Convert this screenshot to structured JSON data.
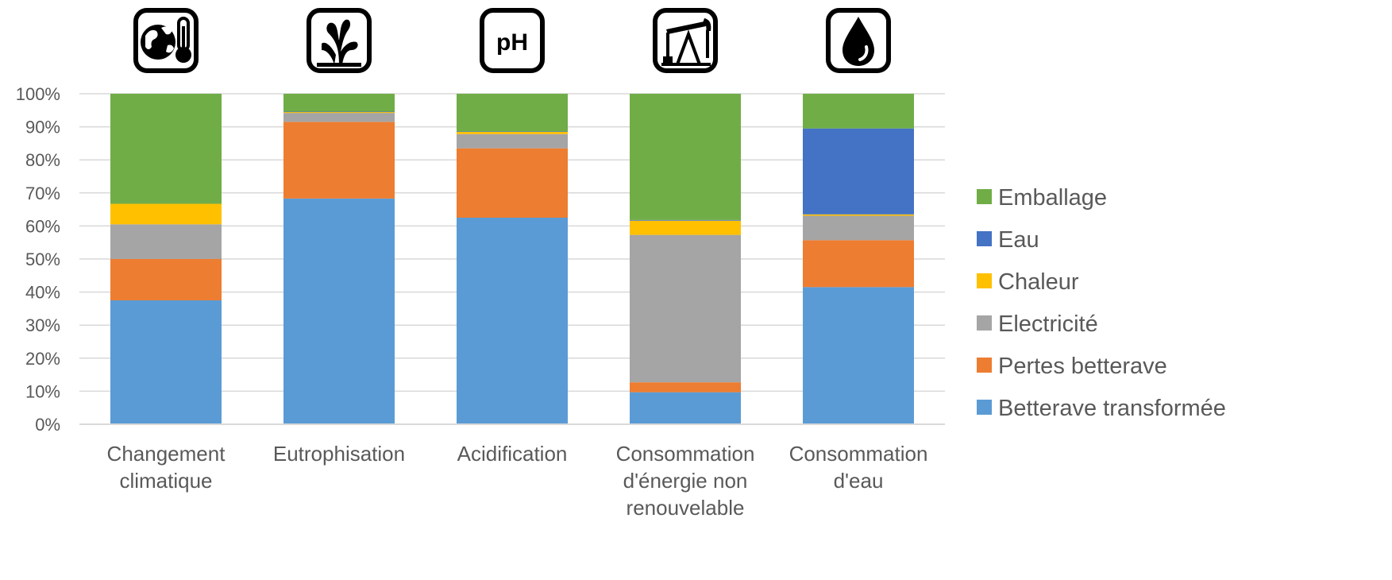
{
  "chart_data": {
    "type": "bar",
    "stacked": true,
    "percent": true,
    "categories": [
      [
        "Changement",
        "climatique"
      ],
      [
        "Eutrophisation"
      ],
      [
        "Acidification"
      ],
      [
        "Consommation",
        "d'énergie non",
        "renouvelable"
      ],
      [
        "Consommation",
        "d'eau"
      ]
    ],
    "category_icons": [
      "globe-thermometer-icon",
      "algae-icon",
      "ph-icon",
      "oil-pump-icon",
      "water-drop-icon"
    ],
    "ph_icon_text": "pH",
    "series": [
      {
        "name": "Betterave transformée",
        "color": "#5B9BD5",
        "values": [
          37.5,
          68.3,
          62.5,
          9.7,
          41.5
        ]
      },
      {
        "name": "Pertes betterave",
        "color": "#ED7D31",
        "values": [
          12.5,
          23.2,
          21.0,
          3.0,
          14.2
        ]
      },
      {
        "name": "Electricité",
        "color": "#A5A5A5",
        "values": [
          10.5,
          2.7,
          4.3,
          44.6,
          7.4
        ]
      },
      {
        "name": "Chaleur",
        "color": "#FFC000",
        "values": [
          6.2,
          0.3,
          0.7,
          4.3,
          0.4
        ]
      },
      {
        "name": "Eau",
        "color": "#4472C4",
        "values": [
          0.0,
          0.1,
          0.1,
          0.2,
          26.0
        ]
      },
      {
        "name": "Emballage",
        "color": "#70AD47",
        "values": [
          33.3,
          5.4,
          11.4,
          38.2,
          10.5
        ]
      }
    ],
    "legend_order": [
      "Emballage",
      "Eau",
      "Chaleur",
      "Electricité",
      "Pertes betterave",
      "Betterave transformée"
    ],
    "y_ticks": [
      "0%",
      "10%",
      "20%",
      "30%",
      "40%",
      "50%",
      "60%",
      "70%",
      "80%",
      "90%",
      "100%"
    ],
    "ylim": [
      0,
      100
    ],
    "grid": true,
    "legend_position": "right",
    "gridline_color": "#D9D9D9"
  }
}
